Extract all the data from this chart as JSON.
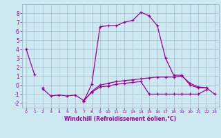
{
  "x": [
    0,
    1,
    2,
    3,
    4,
    5,
    6,
    7,
    8,
    9,
    10,
    11,
    12,
    13,
    14,
    15,
    16,
    17,
    18,
    19,
    20,
    21,
    22,
    23
  ],
  "line1": [
    4.0,
    1.2,
    null,
    null,
    null,
    null,
    null,
    -1.8,
    0.1,
    6.5,
    6.6,
    6.6,
    7.0,
    7.2,
    8.1,
    7.7,
    6.6,
    3.0,
    1.1,
    1.1,
    0.0,
    -0.3,
    -0.3,
    -1.0
  ],
  "line2": [
    null,
    null,
    -0.4,
    -1.2,
    -1.1,
    -1.2,
    -1.1,
    -1.7,
    -0.8,
    -0.2,
    -0.1,
    0.1,
    0.2,
    0.3,
    0.4,
    -1.0,
    -1.0,
    -1.0,
    -1.0,
    -1.0,
    -1.0,
    -1.0,
    -0.5,
    null
  ],
  "line3": [
    null,
    null,
    -0.3,
    null,
    null,
    null,
    null,
    -1.8,
    -0.7,
    0.0,
    0.2,
    0.4,
    0.5,
    0.6,
    0.7,
    0.8,
    0.9,
    0.9,
    0.9,
    1.0,
    0.2,
    -0.2,
    -0.3,
    null
  ],
  "line_color": "#990099",
  "bg_color": "#cce8f0",
  "grid_color": "#aabbcc",
  "xlabel": "Windchill (Refroidissement éolien,°C)",
  "xlim": [
    -0.5,
    23.5
  ],
  "ylim": [
    -2.5,
    9.0
  ],
  "yticks": [
    -2,
    -1,
    0,
    1,
    2,
    3,
    4,
    5,
    6,
    7,
    8
  ],
  "xticks": [
    0,
    1,
    2,
    3,
    4,
    5,
    6,
    7,
    8,
    9,
    10,
    11,
    12,
    13,
    14,
    15,
    16,
    17,
    18,
    19,
    20,
    21,
    22,
    23
  ],
  "marker": "+"
}
